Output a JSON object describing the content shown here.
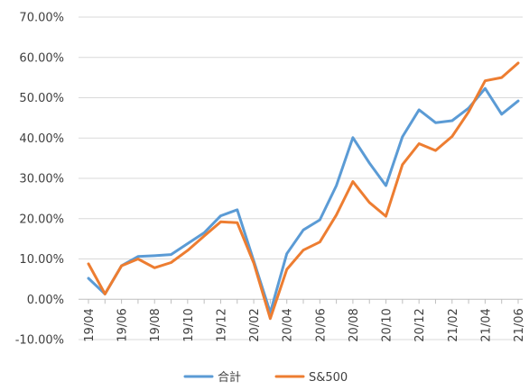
{
  "chart_data": {
    "type": "line",
    "x": [
      "19/04",
      "19/05",
      "19/06",
      "19/07",
      "19/08",
      "19/09",
      "19/10",
      "19/11",
      "19/12",
      "20/01",
      "20/02",
      "20/03",
      "20/04",
      "20/05",
      "20/06",
      "20/07",
      "20/08",
      "20/09",
      "20/10",
      "20/11",
      "20/12",
      "21/01",
      "21/02",
      "21/03",
      "21/04",
      "21/05",
      "21/06"
    ],
    "x_tick_labels": [
      "19/04",
      "19/06",
      "19/08",
      "19/10",
      "19/12",
      "20/02",
      "20/04",
      "20/06",
      "20/08",
      "20/10",
      "20/12",
      "21/02",
      "21/04",
      "21/06"
    ],
    "y_tick_labels": [
      "70.00%",
      "60.00%",
      "50.00%",
      "40.00%",
      "30.00%",
      "20.00%",
      "10.00%",
      "0.00%",
      "-10.00%"
    ],
    "ylim": [
      -10,
      70
    ],
    "y_unit": "%",
    "grid": true,
    "legend_position": "bottom",
    "series": [
      {
        "name": "合計",
        "color": "#5b9bd5",
        "values": [
          5.2,
          1.3,
          8.3,
          10.6,
          10.8,
          11.1,
          13.8,
          16.5,
          20.7,
          22.2,
          9.5,
          -3.3,
          11.3,
          17.2,
          19.7,
          28.2,
          40.1,
          33.8,
          28.2,
          40.3,
          47.0,
          43.8,
          44.3,
          47.4,
          52.3,
          45.9,
          49.2
        ]
      },
      {
        "name": "S&500",
        "color": "#ed7d31",
        "values": [
          8.8,
          1.3,
          8.3,
          10.0,
          7.8,
          9.1,
          12.1,
          15.7,
          19.2,
          19.0,
          9.0,
          -4.8,
          7.4,
          12.2,
          14.2,
          20.9,
          29.2,
          24.0,
          20.6,
          33.4,
          38.6,
          36.9,
          40.4,
          46.5,
          54.2,
          55.0,
          58.6
        ]
      }
    ]
  }
}
